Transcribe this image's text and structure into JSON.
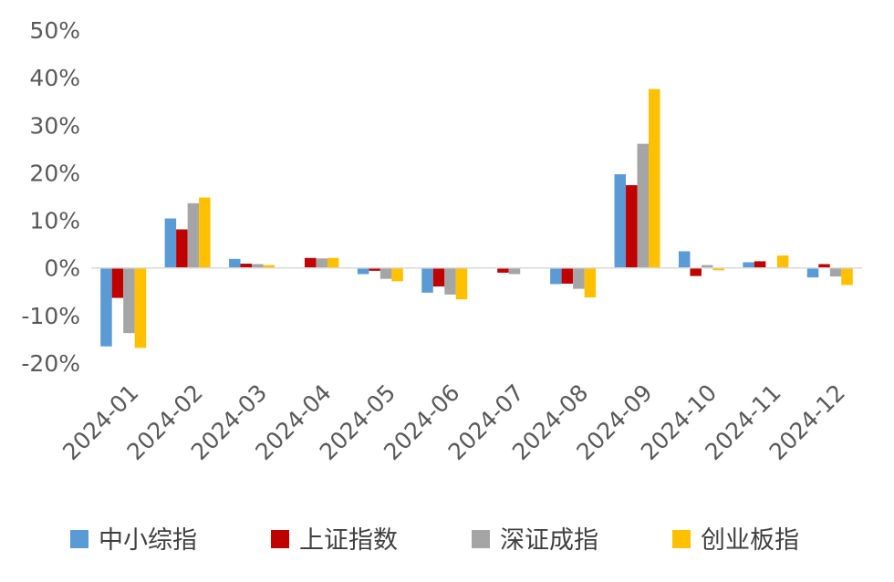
{
  "chart_data": {
    "type": "bar",
    "title": "",
    "xlabel": "",
    "ylabel": "",
    "ylim": [
      -20,
      50
    ],
    "yticks": [
      -20,
      -10,
      0,
      10,
      20,
      30,
      40,
      50
    ],
    "ytick_labels": [
      "-20%",
      "-10%",
      "0%",
      "10%",
      "20%",
      "30%",
      "40%",
      "50%"
    ],
    "grid": false,
    "legend_position": "bottom",
    "categories": [
      "2024-01",
      "2024-02",
      "2024-03",
      "2024-04",
      "2024-05",
      "2024-06",
      "2024-07",
      "2024-08",
      "2024-09",
      "2024-10",
      "2024-11",
      "2024-12"
    ],
    "series": [
      {
        "name": "中小综指",
        "color": "#5B9BD5",
        "values": [
          -16.5,
          10.4,
          1.9,
          0.0,
          -1.3,
          -5.2,
          0.0,
          -3.4,
          19.7,
          3.5,
          1.2,
          -2.0
        ]
      },
      {
        "name": "上证指数",
        "color": "#C00000",
        "values": [
          -6.3,
          8.1,
          0.9,
          2.1,
          -0.6,
          -3.9,
          -1.0,
          -3.3,
          17.4,
          -1.7,
          1.4,
          0.8
        ]
      },
      {
        "name": "深证成指",
        "color": "#A5A5A5",
        "values": [
          -13.7,
          13.6,
          0.8,
          2.0,
          -2.3,
          -5.6,
          -1.3,
          -4.4,
          26.1,
          0.6,
          0.0,
          -1.8
        ]
      },
      {
        "name": "创业板指",
        "color": "#FFC000",
        "values": [
          -16.8,
          14.8,
          0.6,
          2.1,
          -2.8,
          -6.6,
          0.0,
          -6.2,
          37.6,
          -0.5,
          2.6,
          -3.6
        ]
      }
    ]
  }
}
